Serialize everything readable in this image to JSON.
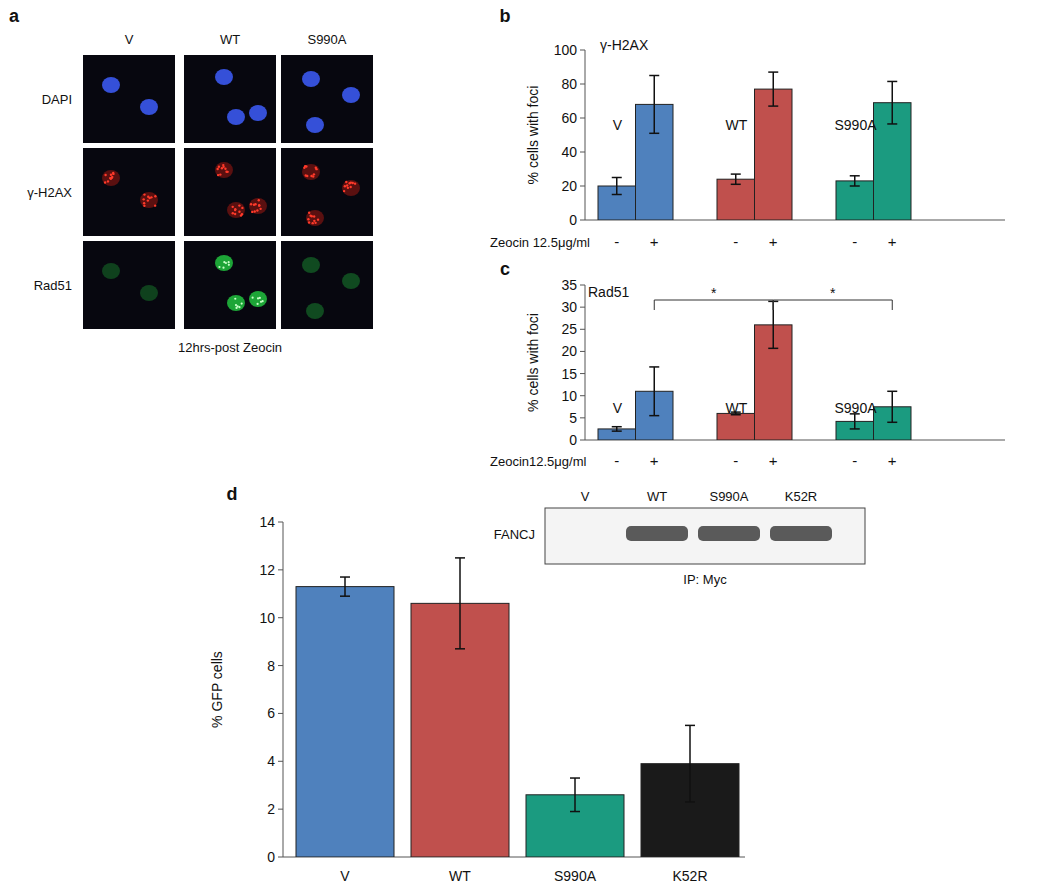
{
  "figure": {
    "panel_a": {
      "panel_label": "a",
      "columns": [
        "V",
        "WT",
        "S990A"
      ],
      "rows": [
        "DAPI",
        "γ-H2AX",
        "Rad51"
      ],
      "caption": "12hrs-post Zeocin"
    },
    "blot": {
      "lanes": [
        "V",
        "WT",
        "S990A",
        "K52R"
      ],
      "bands": [
        false,
        true,
        true,
        true
      ],
      "row_label": "FANCJ",
      "caption": "IP: Myc"
    }
  },
  "chart_data": [
    {
      "panel_label": "b",
      "type": "bar",
      "title": "γ-H2AX",
      "y_label": "% cells with foci",
      "x_label": "Zeocin 12.5μg/ml",
      "categories": [
        "-",
        "+"
      ],
      "series": [
        {
          "name": "V",
          "color": "#4f81bd",
          "values": [
            20,
            68
          ],
          "errors": [
            5,
            17
          ]
        },
        {
          "name": "WT",
          "color": "#c0504d",
          "values": [
            24,
            77
          ],
          "errors": [
            3,
            10
          ]
        },
        {
          "name": "S990A",
          "color": "#1b9b80",
          "values": [
            23,
            69
          ],
          "errors": [
            3,
            12.5
          ]
        }
      ],
      "ylim": [
        0,
        100
      ],
      "yticks": [
        0,
        20,
        40,
        60,
        80,
        100
      ]
    },
    {
      "panel_label": "c",
      "type": "bar",
      "title": "Rad51",
      "y_label": "% cells with foci",
      "x_label": "Zeocin12.5μg/ml",
      "categories": [
        "-",
        "+"
      ],
      "series": [
        {
          "name": "V",
          "color": "#4f81bd",
          "values": [
            2.5,
            11
          ],
          "errors": [
            0.5,
            5.5
          ]
        },
        {
          "name": "WT",
          "color": "#c0504d",
          "values": [
            6,
            26
          ],
          "errors": [
            0.3,
            5.3
          ]
        },
        {
          "name": "S990A",
          "color": "#1b9b80",
          "values": [
            4.2,
            7.5
          ],
          "errors": [
            1.7,
            3.5
          ]
        }
      ],
      "comparisons": [
        {
          "label": "*",
          "category": "+",
          "between": [
            "V",
            "WT"
          ]
        },
        {
          "label": "*",
          "category": "+",
          "between": [
            "WT",
            "S990A"
          ]
        }
      ],
      "ylim": [
        0,
        35
      ],
      "yticks": [
        0,
        5,
        10,
        15,
        20,
        25,
        30,
        35
      ]
    },
    {
      "panel_label": "d",
      "type": "bar",
      "y_label": "% GFP cells",
      "categories": [
        "V",
        "WT",
        "S990A",
        "K52R"
      ],
      "values": [
        11.3,
        10.6,
        2.6,
        3.9
      ],
      "errors": [
        0.4,
        1.9,
        0.7,
        1.6
      ],
      "colors": [
        "#4f81bd",
        "#c0504d",
        "#1b9b80",
        "#1a1a1a"
      ],
      "ylim": [
        0,
        14
      ],
      "yticks": [
        0,
        2,
        4,
        6,
        8,
        10,
        12,
        14
      ]
    }
  ]
}
